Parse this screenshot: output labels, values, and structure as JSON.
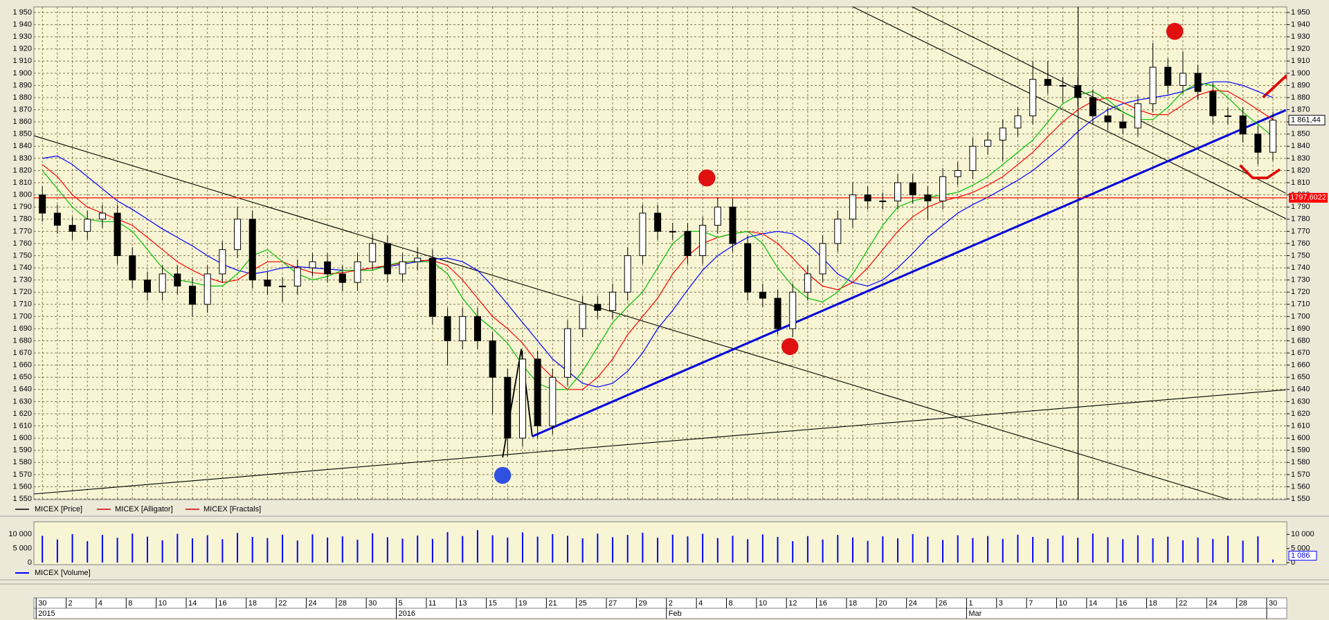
{
  "chart_data": {
    "type": "candlestick",
    "price_name": "MICEX [Price]",
    "price_color": "#000000",
    "fractals_name": "MICEX [Fractals]",
    "fractals_color": "#cc0000",
    "color_up": "#ffffff",
    "color_down": "#000000",
    "grid": true,
    "categories": [
      "30",
      null,
      "2",
      null,
      "4",
      null,
      "8",
      null,
      "10",
      null,
      "14",
      null,
      "16",
      null,
      "18",
      null,
      "22",
      null,
      "24",
      null,
      "28",
      null,
      "30",
      null,
      "5",
      null,
      "11",
      null,
      "13",
      null,
      "15",
      null,
      "19",
      null,
      "21",
      null,
      "25",
      null,
      "27",
      null,
      "29",
      null,
      "2",
      null,
      "4",
      null,
      "8",
      null,
      "10",
      null,
      "12",
      null,
      "16",
      null,
      "18",
      null,
      "20",
      null,
      "24",
      null,
      "26",
      null,
      "1",
      null,
      "3",
      null,
      "7",
      null,
      "10",
      null,
      "14",
      null,
      "16",
      null,
      "18",
      null,
      "22",
      null,
      "24",
      null,
      "28",
      null,
      "30"
    ],
    "periods": [
      "2015",
      null,
      null,
      null,
      null,
      null,
      null,
      null,
      null,
      null,
      null,
      null,
      null,
      null,
      null,
      null,
      null,
      null,
      null,
      null,
      null,
      null,
      null,
      null,
      "2016",
      null,
      null,
      null,
      null,
      null,
      null,
      null,
      null,
      null,
      null,
      null,
      null,
      null,
      null,
      null,
      null,
      null,
      "Feb",
      null,
      null,
      null,
      null,
      null,
      null,
      null,
      null,
      null,
      null,
      null,
      null,
      null,
      null,
      null,
      null,
      null,
      null,
      null,
      "Mar",
      null,
      null,
      null,
      null,
      null,
      null,
      null,
      null,
      null,
      null,
      null,
      null,
      null,
      null,
      null,
      null,
      null,
      null,
      null
    ],
    "open": [
      1800,
      1785,
      1775,
      1770,
      1780,
      1785,
      1750,
      1730,
      1720,
      1735,
      1725,
      1710,
      1735,
      1755,
      1780,
      1730,
      1725,
      1725,
      1740,
      1745,
      1735,
      1728,
      1745,
      1760,
      1735,
      1745,
      1748,
      1700,
      1680,
      1700,
      1680,
      1650,
      1600,
      1665,
      1610,
      1650,
      1690,
      1710,
      1705,
      1720,
      1750,
      1785,
      1770,
      1770,
      1750,
      1775,
      1790,
      1760,
      1720,
      1715,
      1690,
      1720,
      1735,
      1760,
      1780,
      1800,
      1795,
      1795,
      1810,
      1800,
      1795,
      1815,
      1820,
      1840,
      1845,
      1855,
      1865,
      1895,
      1890,
      1890,
      1880,
      1865,
      1860,
      1855,
      1875,
      1905,
      1890,
      1900,
      1885,
      1865,
      1865,
      1850,
      1835
    ],
    "high": [
      1807,
      1792,
      1782,
      1787,
      1792,
      1792,
      1757,
      1737,
      1742,
      1742,
      1732,
      1742,
      1762,
      1790,
      1787,
      1737,
      1732,
      1747,
      1752,
      1752,
      1742,
      1752,
      1768,
      1767,
      1752,
      1757,
      1755,
      1707,
      1707,
      1707,
      1687,
      1657,
      1672,
      1672,
      1657,
      1697,
      1717,
      1717,
      1727,
      1757,
      1792,
      1792,
      1777,
      1777,
      1782,
      1798,
      1797,
      1767,
      1727,
      1722,
      1727,
      1742,
      1767,
      1787,
      1810,
      1807,
      1802,
      1817,
      1817,
      1807,
      1822,
      1827,
      1847,
      1852,
      1862,
      1872,
      1910,
      1910,
      1897,
      1897,
      1887,
      1872,
      1867,
      1882,
      1925,
      1912,
      1918,
      1907,
      1892,
      1872,
      1872,
      1857,
      1868
    ],
    "low": [
      1778,
      1768,
      1763,
      1763,
      1773,
      1743,
      1723,
      1713,
      1713,
      1718,
      1700,
      1703,
      1728,
      1748,
      1723,
      1718,
      1712,
      1718,
      1733,
      1728,
      1721,
      1721,
      1738,
      1728,
      1728,
      1738,
      1693,
      1660,
      1673,
      1673,
      1620,
      1585,
      1593,
      1600,
      1603,
      1643,
      1683,
      1698,
      1698,
      1713,
      1743,
      1763,
      1763,
      1743,
      1743,
      1768,
      1753,
      1713,
      1708,
      1685,
      1683,
      1713,
      1728,
      1753,
      1773,
      1788,
      1788,
      1788,
      1793,
      1780,
      1788,
      1808,
      1813,
      1833,
      1828,
      1848,
      1858,
      1883,
      1876,
      1873,
      1858,
      1853,
      1850,
      1848,
      1868,
      1883,
      1883,
      1878,
      1858,
      1858,
      1843,
      1825,
      1828
    ],
    "close": [
      1785,
      1775,
      1770,
      1780,
      1785,
      1750,
      1730,
      1720,
      1735,
      1725,
      1710,
      1735,
      1755,
      1780,
      1730,
      1725,
      1725,
      1740,
      1745,
      1735,
      1728,
      1745,
      1760,
      1735,
      1745,
      1748,
      1700,
      1680,
      1700,
      1680,
      1650,
      1600,
      1665,
      1610,
      1650,
      1690,
      1710,
      1705,
      1720,
      1750,
      1785,
      1770,
      1770,
      1750,
      1775,
      1790,
      1760,
      1720,
      1715,
      1690,
      1720,
      1735,
      1760,
      1780,
      1800,
      1795,
      1795,
      1810,
      1800,
      1795,
      1815,
      1820,
      1840,
      1845,
      1855,
      1865,
      1895,
      1890,
      1890,
      1880,
      1865,
      1860,
      1855,
      1875,
      1905,
      1890,
      1900,
      1885,
      1865,
      1865,
      1850,
      1835,
      1861.44
    ],
    "last_label": "1 861,44",
    "ylim": [
      1550,
      1950
    ],
    "yticks": [
      {
        "value": 1550,
        "label": "1 550"
      },
      {
        "value": 1560,
        "label": "1 560"
      },
      {
        "value": 1570,
        "label": "1 570"
      },
      {
        "value": 1580,
        "label": "1 580"
      },
      {
        "value": 1590,
        "label": "1 590"
      },
      {
        "value": 1600,
        "label": "1 600"
      },
      {
        "value": 1610,
        "label": "1 610"
      },
      {
        "value": 1620,
        "label": "1 620"
      },
      {
        "value": 1630,
        "label": "1 630"
      },
      {
        "value": 1640,
        "label": "1 640"
      },
      {
        "value": 1650,
        "label": "1 650"
      },
      {
        "value": 1660,
        "label": "1 660"
      },
      {
        "value": 1670,
        "label": "1 670"
      },
      {
        "value": 1680,
        "label": "1 680"
      },
      {
        "value": 1690,
        "label": "1 690"
      },
      {
        "value": 1700,
        "label": "1 700"
      },
      {
        "value": 1710,
        "label": "1 710"
      },
      {
        "value": 1720,
        "label": "1 720"
      },
      {
        "value": 1730,
        "label": "1 730"
      },
      {
        "value": 1740,
        "label": "1 740"
      },
      {
        "value": 1750,
        "label": "1 750"
      },
      {
        "value": 1760,
        "label": "1 760"
      },
      {
        "value": 1770,
        "label": "1 770"
      },
      {
        "value": 1780,
        "label": "1 780"
      },
      {
        "value": 1790,
        "label": "1 790"
      },
      {
        "value": 1800,
        "label": "1 800"
      },
      {
        "value": 1810,
        "label": "1 810"
      },
      {
        "value": 1820,
        "label": "1 820"
      },
      {
        "value": 1830,
        "label": "1 830"
      },
      {
        "value": 1840,
        "label": "1 840"
      },
      {
        "value": 1850,
        "label": "1 850"
      },
      {
        "value": 1860,
        "label": "1 860"
      },
      {
        "value": 1870,
        "label": "1 870"
      },
      {
        "value": 1880,
        "label": "1 880"
      },
      {
        "value": 1890,
        "label": "1 890"
      },
      {
        "value": 1900,
        "label": "1 900"
      },
      {
        "value": 1910,
        "label": "1 910"
      },
      {
        "value": 1920,
        "label": "1 920"
      },
      {
        "value": 1930,
        "label": "1 930"
      },
      {
        "value": 1940,
        "label": "1 940"
      },
      {
        "value": 1950,
        "label": "1 950"
      }
    ],
    "hline": {
      "value": 1797.6022,
      "label": "1797,6022",
      "color": "#ff0000"
    },
    "alligator": {
      "name": "MICEX [Alligator]",
      "color": "#cc0000",
      "lines": [
        {
          "color": "#0000ff",
          "values": [
            1830,
            1832,
            1825,
            1815,
            1805,
            1795,
            1788,
            1780,
            1772,
            1765,
            1758,
            1750,
            1743,
            1738,
            1735,
            1737,
            1740,
            1741,
            1740,
            1739,
            1738,
            1738,
            1740,
            1741,
            1743,
            1745,
            1747,
            1748,
            1745,
            1738,
            1725,
            1710,
            1695,
            1680,
            1665,
            1655,
            1645,
            1642,
            1645,
            1655,
            1670,
            1690,
            1705,
            1722,
            1738,
            1750,
            1758,
            1765,
            1768,
            1770,
            1768,
            1760,
            1748,
            1735,
            1728,
            1725,
            1730,
            1740,
            1752,
            1765,
            1775,
            1785,
            1792,
            1798,
            1805,
            1812,
            1820,
            1830,
            1840,
            1852,
            1862,
            1870,
            1875,
            1878,
            1880,
            1882,
            1885,
            1890,
            1893,
            1893,
            1890,
            1885,
            1880
          ]
        },
        {
          "color": "#ff0000",
          "values": [
            1825,
            1815,
            1800,
            1790,
            1785,
            1780,
            1775,
            1765,
            1755,
            1745,
            1738,
            1732,
            1728,
            1730,
            1738,
            1745,
            1745,
            1740,
            1736,
            1735,
            1736,
            1738,
            1740,
            1742,
            1744,
            1746,
            1746,
            1742,
            1730,
            1715,
            1700,
            1690,
            1678,
            1662,
            1650,
            1640,
            1640,
            1650,
            1665,
            1685,
            1700,
            1715,
            1735,
            1750,
            1760,
            1765,
            1768,
            1770,
            1768,
            1760,
            1748,
            1735,
            1725,
            1722,
            1728,
            1740,
            1755,
            1770,
            1782,
            1790,
            1795,
            1798,
            1802,
            1808,
            1815,
            1825,
            1835,
            1848,
            1860,
            1870,
            1877,
            1880,
            1876,
            1870,
            1866,
            1866,
            1874,
            1882,
            1886,
            1885,
            1878,
            1870,
            1862
          ]
        },
        {
          "color": "#00c000",
          "values": [
            1820,
            1805,
            1790,
            1780,
            1778,
            1778,
            1770,
            1755,
            1740,
            1730,
            1728,
            1725,
            1725,
            1735,
            1750,
            1755,
            1745,
            1735,
            1730,
            1733,
            1738,
            1738,
            1738,
            1742,
            1745,
            1745,
            1745,
            1735,
            1715,
            1700,
            1690,
            1678,
            1660,
            1645,
            1640,
            1640,
            1655,
            1675,
            1695,
            1708,
            1720,
            1740,
            1760,
            1770,
            1770,
            1765,
            1768,
            1770,
            1760,
            1740,
            1725,
            1715,
            1712,
            1720,
            1735,
            1755,
            1775,
            1790,
            1795,
            1798,
            1800,
            1802,
            1808,
            1815,
            1825,
            1835,
            1845,
            1860,
            1875,
            1882,
            1885,
            1878,
            1868,
            1862,
            1862,
            1872,
            1885,
            1892,
            1890,
            1880,
            1868,
            1858,
            1848
          ]
        }
      ]
    },
    "volume": {
      "name": "MICEX [Volume]",
      "color": "#0000ff",
      "values": [
        9500,
        8200,
        10100,
        7600,
        9800,
        8800,
        10300,
        9200,
        7900,
        10200,
        8600,
        9700,
        8300,
        10500,
        9100,
        8700,
        9900,
        7800,
        10000,
        8900,
        9300,
        8100,
        10400,
        9000,
        8500,
        9600,
        8400,
        10800,
        9400,
        11500,
        9700,
        8900,
        10700,
        9200,
        10100,
        9500,
        8600,
        10300,
        9000,
        9800,
        10600,
        8800,
        9900,
        9300,
        10200,
        8700,
        9500,
        8300,
        10000,
        9100,
        7600,
        9400,
        8200,
        9800,
        8900,
        7700,
        9300,
        8600,
        10100,
        9200,
        8000,
        9700,
        8700,
        9400,
        8400,
        9900,
        9100,
        8500,
        9600,
        8800,
        10300,
        9000,
        8300,
        9700,
        8600,
        9200,
        7900,
        8900,
        8400,
        9500,
        7800,
        9300,
        1086
      ],
      "last_label": "1 086",
      "ylim": [
        0,
        14000
      ],
      "yticks": [
        0,
        {
          "value": 5000,
          "label": "5 000"
        },
        {
          "value": 10000,
          "label": "10 000"
        }
      ]
    }
  }
}
